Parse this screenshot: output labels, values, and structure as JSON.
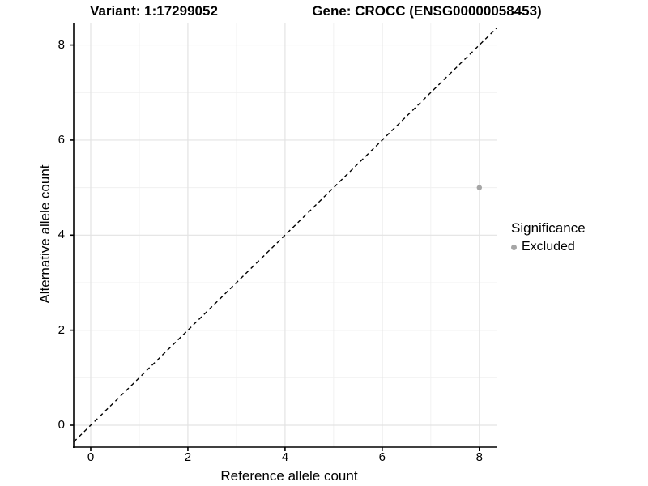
{
  "figure": {
    "title_left": "Variant: 1:17299052",
    "title_right": "Gene: CROCC (ENSG00000058453)"
  },
  "chart_data": {
    "type": "scatter",
    "title_left": "Variant: 1:17299052",
    "title_right": "Gene: CROCC (ENSG00000058453)",
    "xlabel": "Reference allele count",
    "ylabel": "Alternative allele count",
    "xlim": [
      -0.35,
      8.37
    ],
    "ylim": [
      -0.46,
      8.47
    ],
    "xticks": [
      0,
      2,
      4,
      6,
      8
    ],
    "yticks": [
      0,
      2,
      4,
      6,
      8
    ],
    "minor_xticks": [
      1,
      3,
      5,
      7
    ],
    "minor_yticks": [
      1,
      3,
      5,
      7
    ],
    "grid": "major-and-minor",
    "identity_line": {
      "equation": "y = x",
      "style": "dashed",
      "color": "#000000"
    },
    "points": [
      {
        "x": 8,
        "y": 5,
        "series": "Excluded"
      }
    ],
    "point_color": "#a6a6a6",
    "point_radius": 3.2,
    "legend": {
      "position": "right",
      "title": "Significance",
      "items": [
        {
          "label": "Excluded",
          "color": "#a6a6a6"
        }
      ]
    },
    "colors": {
      "grid_major": "#e3e3e3",
      "grid_minor": "#f0f0f0",
      "axis_line": "#000000",
      "background": "#ffffff"
    }
  }
}
